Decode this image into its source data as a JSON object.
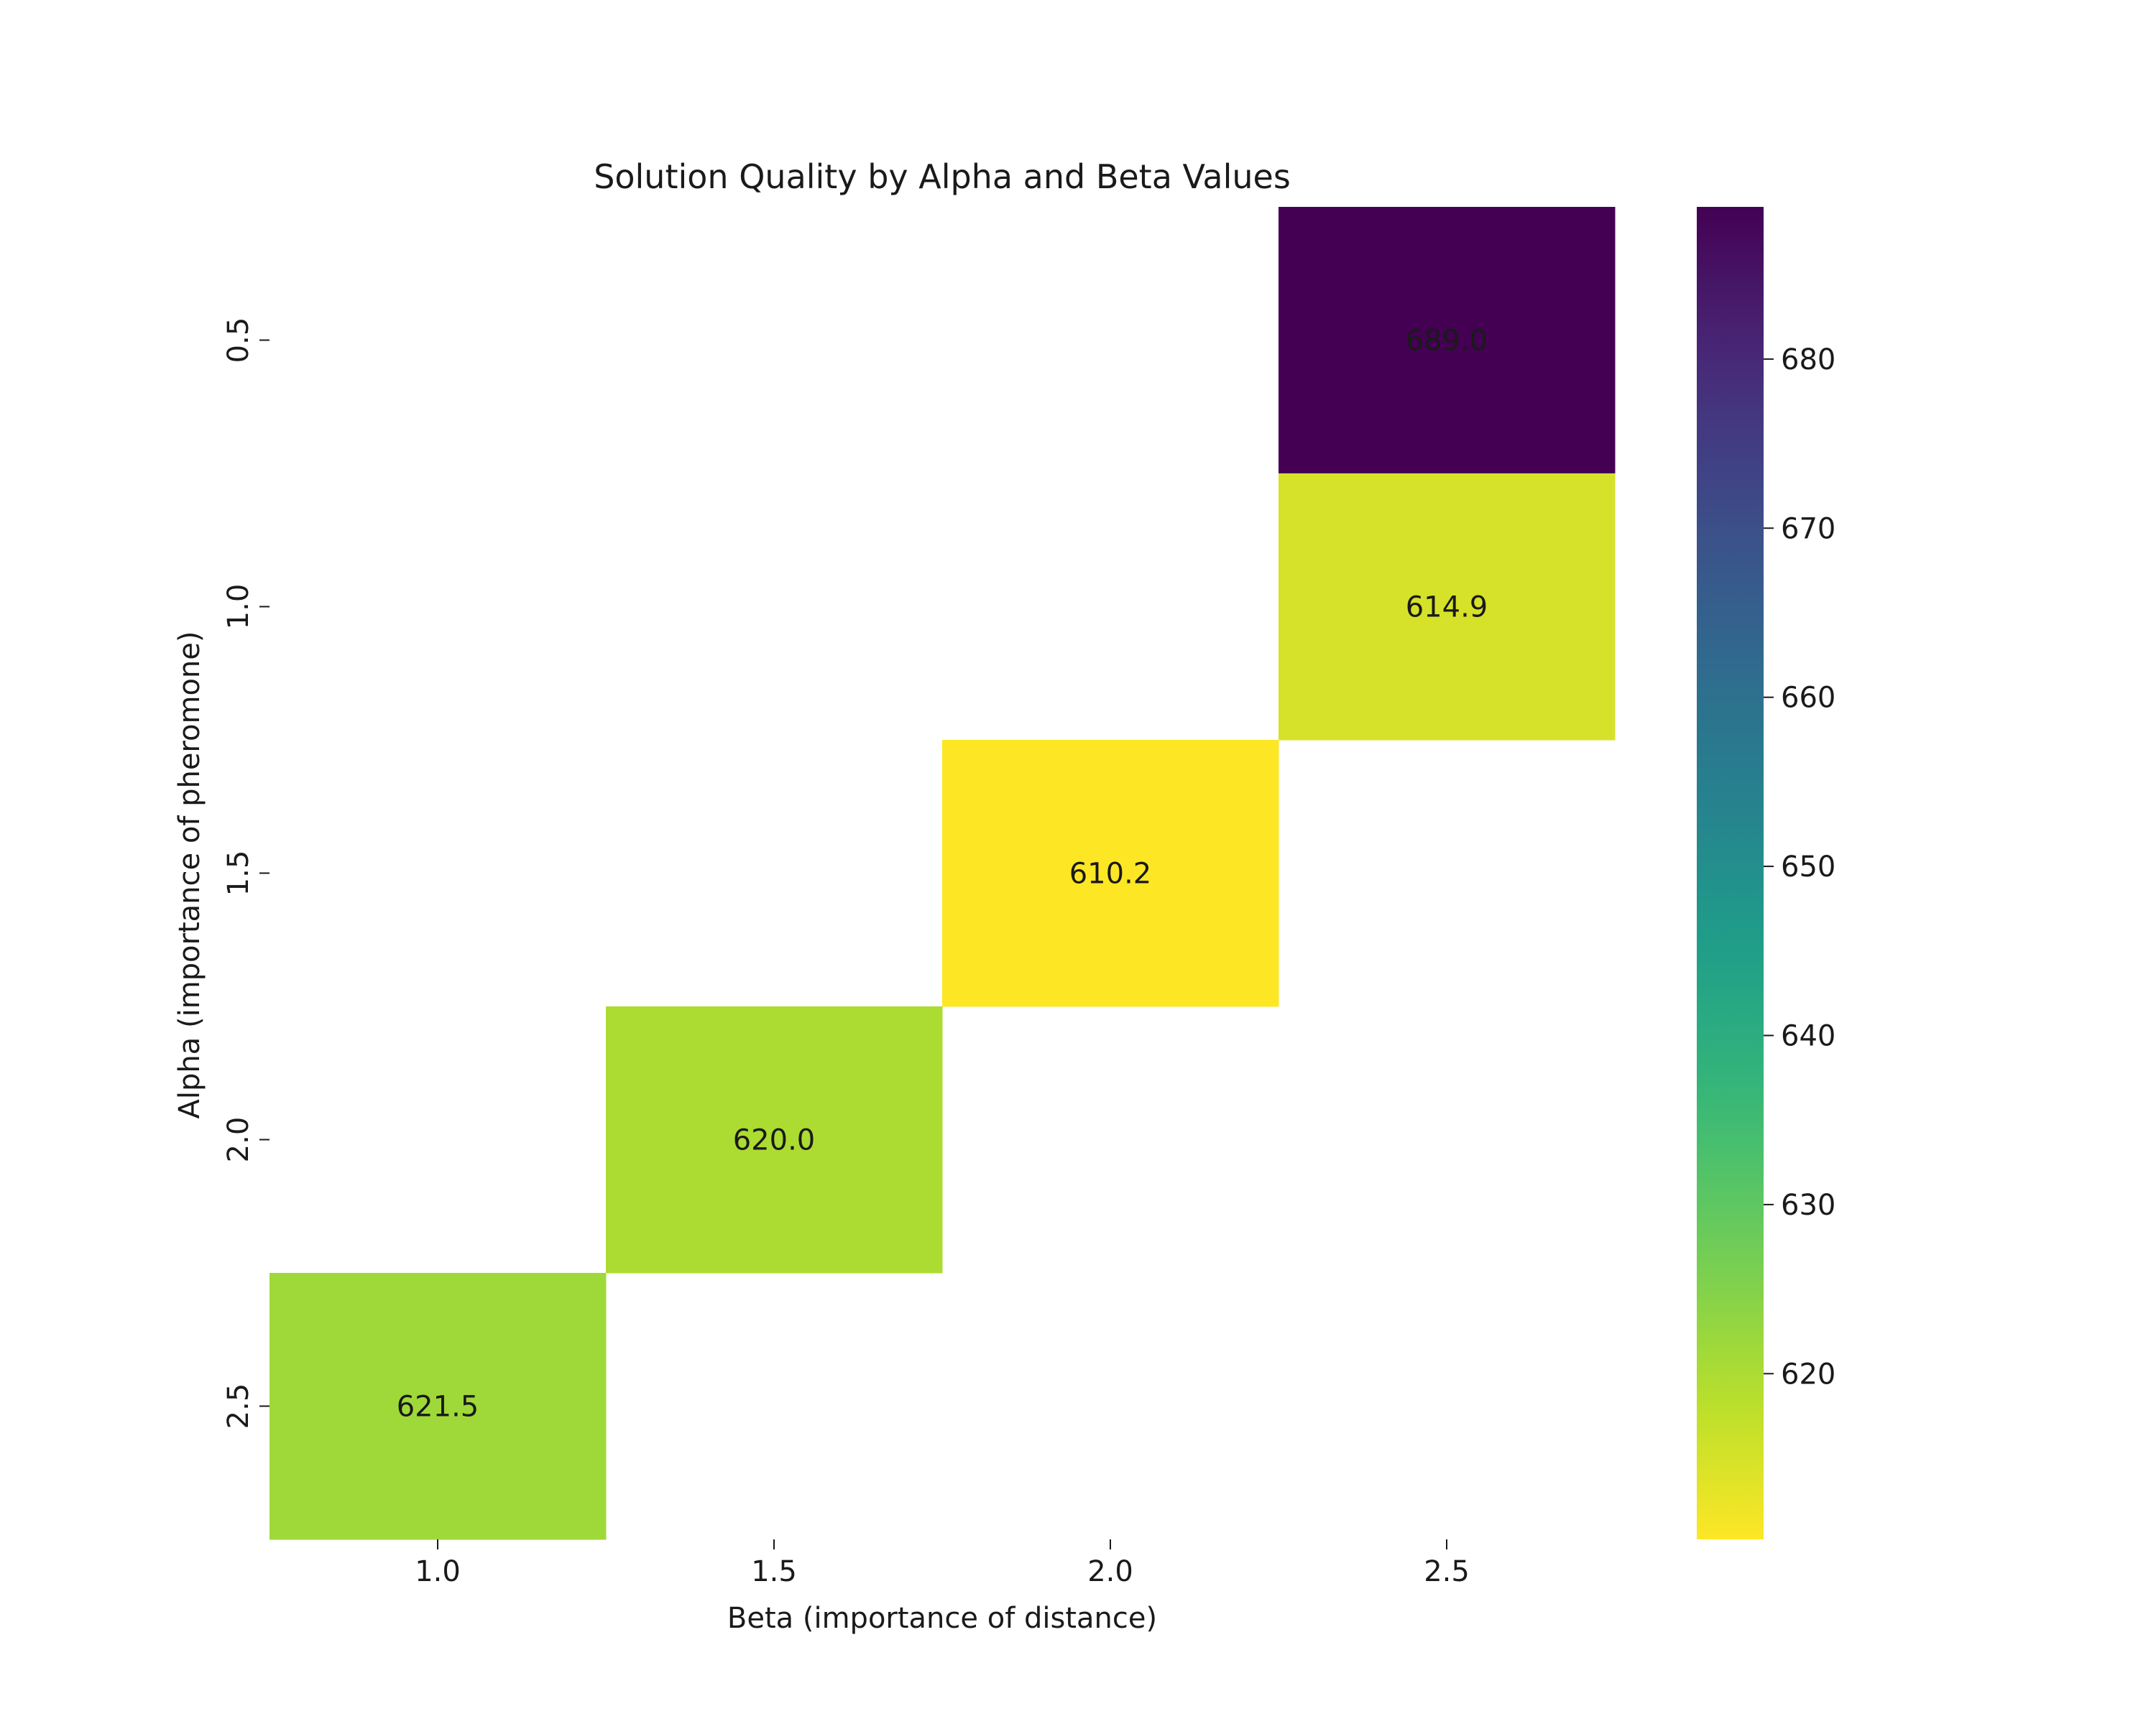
{
  "chart_data": {
    "type": "heatmap",
    "title": "Solution Quality by Alpha and Beta Values",
    "xlabel": "Beta (importance of distance)",
    "ylabel": "Alpha (importance of pheromone)",
    "x_categories": [
      "1.0",
      "1.5",
      "2.0",
      "2.5"
    ],
    "y_categories": [
      "0.5",
      "1.0",
      "1.5",
      "2.0",
      "2.5"
    ],
    "cells": [
      {
        "x": "2.5",
        "y": "0.5",
        "value": 689.0,
        "label": "689.0"
      },
      {
        "x": "2.5",
        "y": "1.0",
        "value": 614.9,
        "label": "614.9"
      },
      {
        "x": "2.0",
        "y": "1.5",
        "value": 610.2,
        "label": "610.2"
      },
      {
        "x": "1.5",
        "y": "2.0",
        "value": 620.0,
        "label": "620.0"
      },
      {
        "x": "1.0",
        "y": "2.5",
        "value": 621.5,
        "label": "621.5"
      }
    ],
    "colormap": "viridis_r",
    "value_range": [
      610.2,
      689.0
    ],
    "colorbar_ticks": [
      "620",
      "630",
      "640",
      "650",
      "660",
      "670",
      "680"
    ],
    "grid": false,
    "legend": "colorbar-right"
  }
}
